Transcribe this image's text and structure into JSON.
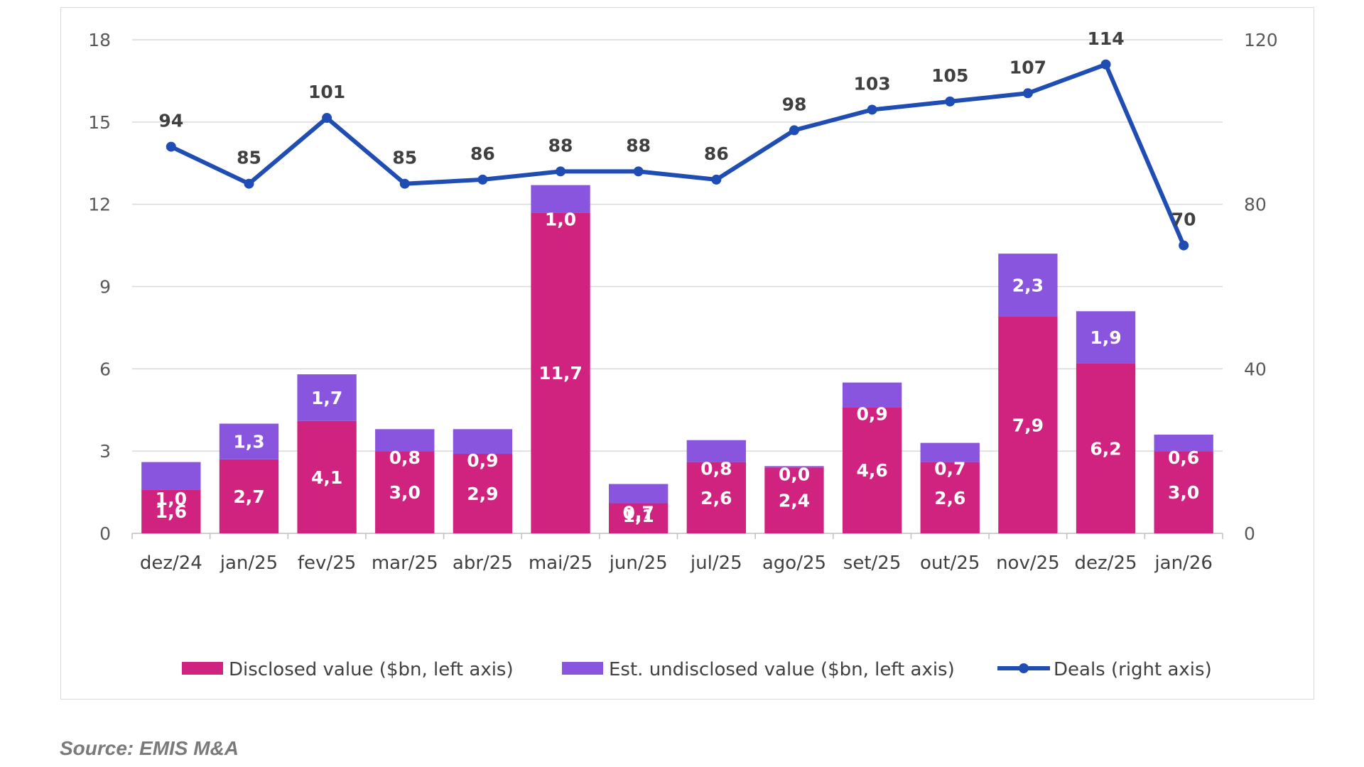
{
  "chart_data": {
    "type": "bar",
    "stacked": true,
    "categories": [
      "dez/24",
      "jan/25",
      "fev/25",
      "mar/25",
      "abr/25",
      "mai/25",
      "jun/25",
      "jul/25",
      "ago/25",
      "set/25",
      "out/25",
      "nov/25",
      "dez/25",
      "jan/26"
    ],
    "series": [
      {
        "name": "Disclosed value ($bn, left axis)",
        "type": "bar",
        "axis": "left",
        "color": "#d0237f",
        "values": [
          1.6,
          2.7,
          4.1,
          3.0,
          2.9,
          11.7,
          1.1,
          2.6,
          2.4,
          4.6,
          2.6,
          7.9,
          6.2,
          3.0
        ],
        "labels": [
          "1,6",
          "2,7",
          "4,1",
          "3,0",
          "2,9",
          "11,7",
          "1,1",
          "2,6",
          "2,4",
          "4,6",
          "2,6",
          "7,9",
          "6,2",
          "3,0"
        ]
      },
      {
        "name": "Est. undisclosed value ($bn, left axis)",
        "type": "bar",
        "axis": "left",
        "color": "#8a55de",
        "values": [
          1.0,
          1.3,
          1.7,
          0.8,
          0.9,
          1.0,
          0.7,
          0.8,
          0.0,
          0.9,
          0.7,
          2.3,
          1.9,
          0.6
        ],
        "labels": [
          "1,0",
          "1,3",
          "1,7",
          "0,8",
          "0,9",
          "1,0",
          "0,7",
          "0,8",
          "0,0",
          "0,9",
          "0,7",
          "2,3",
          "1,9",
          "0,6"
        ]
      },
      {
        "name": "Deals (right axis)",
        "type": "line",
        "axis": "right",
        "color": "#1f4db3",
        "values": [
          94,
          85,
          101,
          85,
          86,
          88,
          88,
          86,
          98,
          103,
          105,
          107,
          114,
          70
        ],
        "labels": [
          "94",
          "85",
          "101",
          "85",
          "86",
          "88",
          "88",
          "86",
          "98",
          "103",
          "105",
          "107",
          "114",
          "70"
        ]
      }
    ],
    "y_left": {
      "range": [
        0,
        18
      ],
      "ticks": [
        "0",
        "3",
        "6",
        "9",
        "12",
        "15",
        "18"
      ],
      "tick_values": [
        0,
        3,
        6,
        9,
        12,
        15,
        18
      ]
    },
    "y_right": {
      "range": [
        0,
        120
      ],
      "ticks": [
        "0",
        "40",
        "80",
        "120"
      ],
      "tick_values": [
        0,
        40,
        80,
        120
      ]
    },
    "grid": true,
    "legend_position": "bottom"
  },
  "source": "Source: EMIS M&A"
}
